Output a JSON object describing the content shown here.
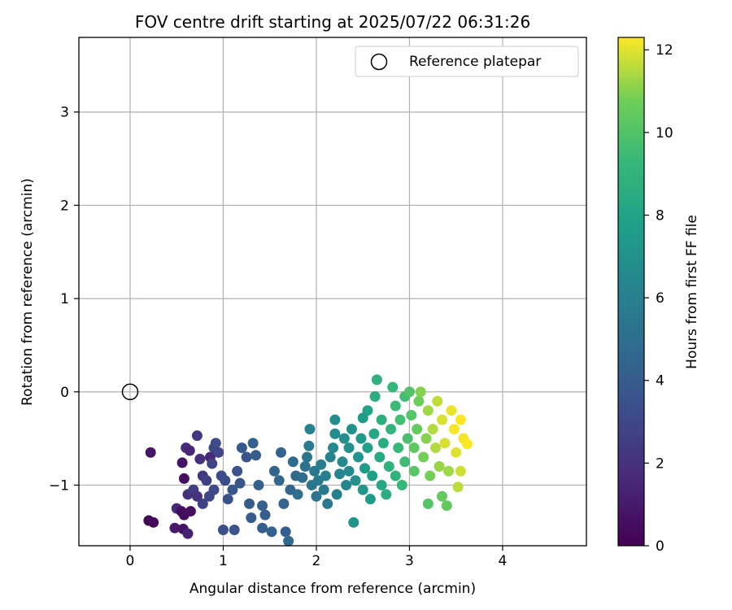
{
  "chart_data": {
    "type": "scatter",
    "title": "FOV centre drift starting at 2025/07/22 06:31:26",
    "xlabel": "Angular distance from reference (arcmin)",
    "ylabel": "Rotation from reference (arcmin)",
    "xlim": [
      -0.55,
      4.9
    ],
    "ylim": [
      -1.65,
      3.8
    ],
    "xticks": [
      "0",
      "1",
      "2",
      "3",
      "4"
    ],
    "yticks": [
      "−1",
      "0",
      "1",
      "2",
      "3"
    ],
    "grid": true,
    "legend": {
      "label": "Reference platepar",
      "placement": "top-right"
    },
    "reference_point": {
      "x": 0,
      "y": 0
    },
    "colorbar": {
      "label": "Hours from first FF file",
      "range": [
        0,
        12.3
      ],
      "ticks": [
        "0",
        "2",
        "4",
        "6",
        "8",
        "10",
        "12"
      ],
      "colormap": "viridis"
    },
    "points": [
      [
        0.2,
        -1.38,
        0.2
      ],
      [
        0.25,
        -1.4,
        0.3
      ],
      [
        0.22,
        -0.65,
        0.8
      ],
      [
        0.48,
        -1.46,
        1.0
      ],
      [
        0.57,
        -1.47,
        0.7
      ],
      [
        0.62,
        -1.52,
        1.3
      ],
      [
        0.5,
        -1.25,
        1.5
      ],
      [
        0.55,
        -1.28,
        0.5
      ],
      [
        0.58,
        -1.32,
        0.4
      ],
      [
        0.65,
        -1.28,
        0.6
      ],
      [
        0.58,
        -0.93,
        0.6
      ],
      [
        0.56,
        -0.76,
        0.7
      ],
      [
        0.6,
        -0.6,
        1.8
      ],
      [
        0.64,
        -0.63,
        1.5
      ],
      [
        0.72,
        -0.47,
        2.3
      ],
      [
        0.62,
        -1.1,
        2.0
      ],
      [
        0.68,
        -1.05,
        2.4
      ],
      [
        0.72,
        -1.12,
        2.0
      ],
      [
        0.75,
        -0.72,
        1.9
      ],
      [
        0.78,
        -0.9,
        2.2
      ],
      [
        0.82,
        -0.95,
        2.6
      ],
      [
        0.86,
        -0.7,
        1.6
      ],
      [
        0.88,
        -0.77,
        2.8
      ],
      [
        0.9,
        -0.6,
        3.0
      ],
      [
        0.92,
        -0.55,
        3.2
      ],
      [
        0.95,
        -0.65,
        2.9
      ],
      [
        0.78,
        -1.2,
        2.7
      ],
      [
        0.85,
        -1.12,
        3.0
      ],
      [
        0.9,
        -1.05,
        3.1
      ],
      [
        0.98,
        -0.9,
        3.2
      ],
      [
        1.02,
        -0.95,
        3.3
      ],
      [
        1.05,
        -1.15,
        3.5
      ],
      [
        1.0,
        -1.48,
        3.4
      ],
      [
        1.12,
        -1.48,
        3.6
      ],
      [
        1.1,
        -1.05,
        3.8
      ],
      [
        1.15,
        -0.85,
        3.6
      ],
      [
        1.18,
        -0.98,
        3.7
      ],
      [
        1.2,
        -0.6,
        3.9
      ],
      [
        1.25,
        -0.7,
        3.6
      ],
      [
        1.28,
        -1.2,
        4.0
      ],
      [
        1.3,
        -1.35,
        4.0
      ],
      [
        1.32,
        -0.55,
        4.2
      ],
      [
        1.35,
        -0.68,
        4.1
      ],
      [
        1.38,
        -1.0,
        4.2
      ],
      [
        1.42,
        -1.22,
        4.3
      ],
      [
        1.45,
        -1.32,
        4.1
      ],
      [
        1.42,
        -1.46,
        4.2
      ],
      [
        1.52,
        -1.5,
        4.3
      ],
      [
        1.55,
        -0.85,
        4.4
      ],
      [
        1.6,
        -0.95,
        4.5
      ],
      [
        1.62,
        -0.65,
        4.4
      ],
      [
        1.65,
        -1.2,
        4.4
      ],
      [
        1.67,
        -1.5,
        4.1
      ],
      [
        1.7,
        -1.6,
        4.6
      ],
      [
        1.72,
        -1.05,
        4.5
      ],
      [
        1.75,
        -0.75,
        4.7
      ],
      [
        1.78,
        -0.9,
        4.8
      ],
      [
        1.8,
        -1.1,
        5.0
      ],
      [
        1.85,
        -0.92,
        4.9
      ],
      [
        1.88,
        -0.8,
        5.1
      ],
      [
        1.9,
        -0.7,
        5.3
      ],
      [
        1.92,
        -0.58,
        5.8
      ],
      [
        1.93,
        -0.4,
        6.2
      ],
      [
        1.95,
        -1.0,
        5.4
      ],
      [
        1.98,
        -0.85,
        5.5
      ],
      [
        2.0,
        -1.12,
        5.4
      ],
      [
        2.02,
        -0.95,
        5.7
      ],
      [
        2.05,
        -0.78,
        5.9
      ],
      [
        2.08,
        -1.05,
        5.6
      ],
      [
        2.1,
        -0.9,
        6.0
      ],
      [
        2.12,
        -1.2,
        5.6
      ],
      [
        2.15,
        -0.7,
        6.2
      ],
      [
        2.18,
        -0.6,
        6.5
      ],
      [
        2.2,
        -0.45,
        6.6
      ],
      [
        2.2,
        -0.3,
        6.7
      ],
      [
        2.22,
        -1.1,
        6.0
      ],
      [
        2.25,
        -0.88,
        6.3
      ],
      [
        2.28,
        -0.75,
        6.6
      ],
      [
        2.3,
        -0.5,
        6.8
      ],
      [
        2.32,
        -1.0,
        6.4
      ],
      [
        2.35,
        -0.85,
        6.6
      ],
      [
        2.35,
        -0.6,
        7.0
      ],
      [
        2.38,
        -0.4,
        7.0
      ],
      [
        2.4,
        -1.4,
        7.1
      ],
      [
        2.42,
        -0.95,
        6.9
      ],
      [
        2.45,
        -0.7,
        7.2
      ],
      [
        2.48,
        -0.5,
        7.4
      ],
      [
        2.5,
        -0.28,
        7.6
      ],
      [
        2.5,
        -1.05,
        7.3
      ],
      [
        2.52,
        -0.82,
        7.5
      ],
      [
        2.55,
        -0.2,
        8.0
      ],
      [
        2.55,
        -0.6,
        7.8
      ],
      [
        2.58,
        -1.15,
        7.6
      ],
      [
        2.6,
        -0.9,
        7.8
      ],
      [
        2.62,
        -0.45,
        8.2
      ],
      [
        2.63,
        -0.05,
        8.6
      ],
      [
        2.65,
        0.13,
        8.8
      ],
      [
        2.68,
        -0.7,
        8.4
      ],
      [
        2.7,
        -1.0,
        8.2
      ],
      [
        2.7,
        -0.3,
        8.7
      ],
      [
        2.72,
        -0.55,
        8.6
      ],
      [
        2.75,
        -1.1,
        8.6
      ],
      [
        2.78,
        -0.8,
        8.8
      ],
      [
        2.8,
        -0.4,
        9.0
      ],
      [
        2.82,
        0.05,
        9.2
      ],
      [
        2.85,
        -0.15,
        9.4
      ],
      [
        2.85,
        -0.9,
        9.0
      ],
      [
        2.88,
        -0.6,
        9.3
      ],
      [
        2.9,
        -0.3,
        9.6
      ],
      [
        2.92,
        -1.0,
        9.2
      ],
      [
        2.95,
        -0.05,
        9.6
      ],
      [
        2.95,
        -0.75,
        9.5
      ],
      [
        2.98,
        -0.5,
        9.8
      ],
      [
        3.0,
        0.0,
        10.0
      ],
      [
        3.02,
        -0.25,
        10.1
      ],
      [
        3.05,
        -0.85,
        10.2
      ],
      [
        3.05,
        -0.6,
        10.3
      ],
      [
        3.08,
        -0.4,
        10.5
      ],
      [
        3.1,
        -0.1,
        10.7
      ],
      [
        3.12,
        0.0,
        11.0
      ],
      [
        3.15,
        -0.7,
        10.8
      ],
      [
        3.18,
        -0.5,
        11.0
      ],
      [
        3.2,
        -0.2,
        11.3
      ],
      [
        3.2,
        -1.2,
        10.1
      ],
      [
        3.22,
        -0.9,
        10.8
      ],
      [
        3.25,
        -0.4,
        11.5
      ],
      [
        3.28,
        -0.6,
        11.5
      ],
      [
        3.3,
        -0.1,
        11.6
      ],
      [
        3.32,
        -0.8,
        11.2
      ],
      [
        3.35,
        -0.3,
        11.9
      ],
      [
        3.35,
        -1.12,
        10.5
      ],
      [
        3.38,
        -0.55,
        11.9
      ],
      [
        3.4,
        -1.22,
        10.4
      ],
      [
        3.42,
        -0.85,
        11.3
      ],
      [
        3.45,
        -0.2,
        12.1
      ],
      [
        3.48,
        -0.4,
        12.2
      ],
      [
        3.5,
        -0.65,
        12.0
      ],
      [
        3.52,
        -1.02,
        11.6
      ],
      [
        3.55,
        -0.3,
        12.3
      ],
      [
        3.55,
        -0.85,
        11.8
      ],
      [
        3.58,
        -0.5,
        12.2
      ],
      [
        3.62,
        -0.56,
        12.3
      ]
    ]
  }
}
